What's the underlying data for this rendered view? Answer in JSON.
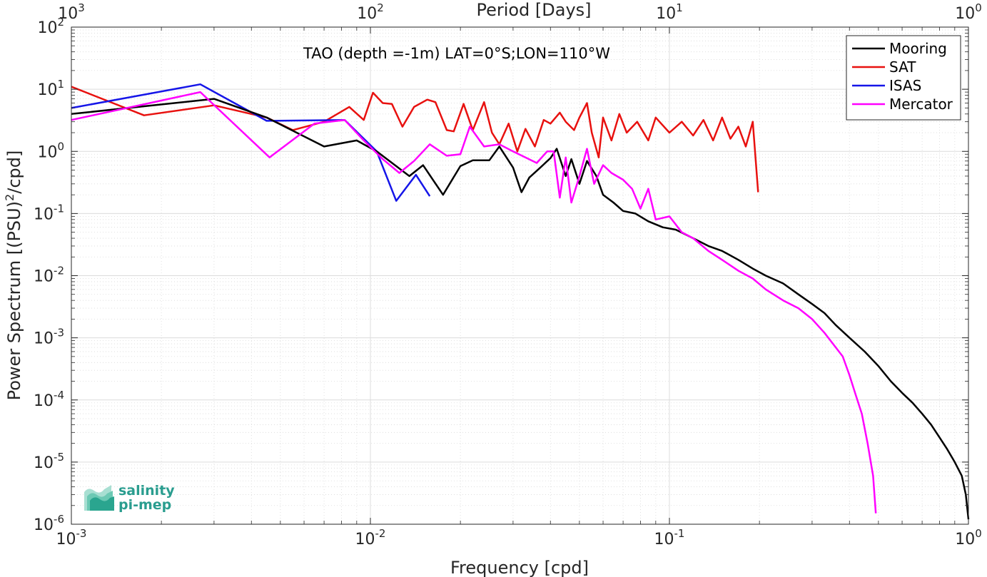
{
  "chart_data": {
    "type": "line",
    "title": "TAO (depth =-1m) LAT=0°S;LON=110°W",
    "xlabel": "Frequency [cpd]",
    "ylabel": "Power Spectrum [(PSU)",
    "ylabel_sup": "2",
    "ylabel_tail": "/cpd]",
    "x2label": "Period [Days]",
    "xscale": "log",
    "yscale": "log",
    "xlim": [
      0.001,
      1
    ],
    "ylim": [
      1e-06,
      100
    ],
    "grid": true,
    "legend_position": "top-right",
    "x_ticks": [
      {
        "value": 0.001,
        "base": "10",
        "exp": "-3"
      },
      {
        "value": 0.01,
        "base": "10",
        "exp": "-2"
      },
      {
        "value": 0.1,
        "base": "10",
        "exp": "-1"
      },
      {
        "value": 1,
        "base": "10",
        "exp": "0"
      }
    ],
    "y_ticks": [
      {
        "value": 1e-06,
        "base": "10",
        "exp": "-6"
      },
      {
        "value": 1e-05,
        "base": "10",
        "exp": "-5"
      },
      {
        "value": 0.0001,
        "base": "10",
        "exp": "-4"
      },
      {
        "value": 0.001,
        "base": "10",
        "exp": "-3"
      },
      {
        "value": 0.01,
        "base": "10",
        "exp": "-2"
      },
      {
        "value": 0.1,
        "base": "10",
        "exp": "-1"
      },
      {
        "value": 1,
        "base": "10",
        "exp": "0"
      },
      {
        "value": 10,
        "base": "10",
        "exp": "1"
      },
      {
        "value": 100,
        "base": "10",
        "exp": "2"
      }
    ],
    "x2_ticks": [
      {
        "period": 1000,
        "base": "10",
        "exp": "3"
      },
      {
        "period": 100,
        "base": "10",
        "exp": "2"
      },
      {
        "period": 10,
        "base": "10",
        "exp": "1"
      },
      {
        "period": 1,
        "base": "10",
        "exp": "0"
      }
    ],
    "series": [
      {
        "name": "Mooring",
        "color": "#000000",
        "points": [
          [
            0.001,
            4.0
          ],
          [
            0.003,
            7.0
          ],
          [
            0.0045,
            3.5
          ],
          [
            0.007,
            1.2
          ],
          [
            0.009,
            1.5
          ],
          [
            0.0105,
            1.0
          ],
          [
            0.0135,
            0.4
          ],
          [
            0.015,
            0.6
          ],
          [
            0.0175,
            0.2
          ],
          [
            0.02,
            0.58
          ],
          [
            0.022,
            0.72
          ],
          [
            0.025,
            0.72
          ],
          [
            0.027,
            1.2
          ],
          [
            0.03,
            0.55
          ],
          [
            0.032,
            0.22
          ],
          [
            0.034,
            0.38
          ],
          [
            0.037,
            0.55
          ],
          [
            0.04,
            0.78
          ],
          [
            0.042,
            1.1
          ],
          [
            0.045,
            0.4
          ],
          [
            0.047,
            0.75
          ],
          [
            0.05,
            0.3
          ],
          [
            0.053,
            0.7
          ],
          [
            0.057,
            0.4
          ],
          [
            0.06,
            0.2
          ],
          [
            0.065,
            0.15
          ],
          [
            0.07,
            0.11
          ],
          [
            0.077,
            0.1
          ],
          [
            0.085,
            0.075
          ],
          [
            0.095,
            0.06
          ],
          [
            0.105,
            0.055
          ],
          [
            0.12,
            0.04
          ],
          [
            0.135,
            0.03
          ],
          [
            0.15,
            0.025
          ],
          [
            0.17,
            0.018
          ],
          [
            0.19,
            0.013
          ],
          [
            0.21,
            0.01
          ],
          [
            0.24,
            0.0075
          ],
          [
            0.27,
            0.005
          ],
          [
            0.3,
            0.0035
          ],
          [
            0.33,
            0.0025
          ],
          [
            0.36,
            0.0016
          ],
          [
            0.4,
            0.001
          ],
          [
            0.45,
            0.0006
          ],
          [
            0.5,
            0.00035
          ],
          [
            0.55,
            0.0002
          ],
          [
            0.6,
            0.00013
          ],
          [
            0.65,
            9e-05
          ],
          [
            0.7,
            6e-05
          ],
          [
            0.75,
            4e-05
          ],
          [
            0.8,
            2.5e-05
          ],
          [
            0.85,
            1.6e-05
          ],
          [
            0.9,
            1e-05
          ],
          [
            0.95,
            6e-06
          ],
          [
            0.98,
            3e-06
          ],
          [
            1.0,
            1.2e-06
          ]
        ]
      },
      {
        "name": "SAT",
        "color": "#e8110f",
        "points": [
          [
            0.001,
            11.0
          ],
          [
            0.00175,
            3.8
          ],
          [
            0.003,
            5.5
          ],
          [
            0.0045,
            3.5
          ],
          [
            0.0055,
            2.2
          ],
          [
            0.007,
            3.0
          ],
          [
            0.0085,
            5.2
          ],
          [
            0.0095,
            3.2
          ],
          [
            0.0102,
            8.8
          ],
          [
            0.011,
            6.0
          ],
          [
            0.0118,
            5.8
          ],
          [
            0.0128,
            2.5
          ],
          [
            0.014,
            5.2
          ],
          [
            0.0155,
            6.8
          ],
          [
            0.0165,
            6.2
          ],
          [
            0.018,
            2.2
          ],
          [
            0.019,
            2.1
          ],
          [
            0.0205,
            5.8
          ],
          [
            0.022,
            2.2
          ],
          [
            0.024,
            6.2
          ],
          [
            0.0255,
            2.0
          ],
          [
            0.027,
            1.3
          ],
          [
            0.029,
            2.8
          ],
          [
            0.031,
            1.0
          ],
          [
            0.033,
            2.3
          ],
          [
            0.0355,
            1.2
          ],
          [
            0.038,
            3.2
          ],
          [
            0.04,
            2.8
          ],
          [
            0.043,
            4.2
          ],
          [
            0.045,
            3.0
          ],
          [
            0.048,
            2.2
          ],
          [
            0.05,
            3.5
          ],
          [
            0.053,
            6.0
          ],
          [
            0.055,
            2.0
          ],
          [
            0.058,
            0.8
          ],
          [
            0.06,
            3.5
          ],
          [
            0.064,
            1.5
          ],
          [
            0.068,
            4.0
          ],
          [
            0.072,
            2.0
          ],
          [
            0.078,
            3.0
          ],
          [
            0.085,
            1.5
          ],
          [
            0.09,
            3.5
          ],
          [
            0.1,
            2.0
          ],
          [
            0.11,
            3.0
          ],
          [
            0.12,
            1.8
          ],
          [
            0.13,
            3.2
          ],
          [
            0.14,
            1.5
          ],
          [
            0.15,
            3.5
          ],
          [
            0.16,
            1.6
          ],
          [
            0.17,
            2.5
          ],
          [
            0.18,
            1.2
          ],
          [
            0.19,
            3.0
          ],
          [
            0.198,
            0.22
          ]
        ]
      },
      {
        "name": "ISAS",
        "color": "#1515e8",
        "points": [
          [
            0.001,
            5.0
          ],
          [
            0.0027,
            12.0
          ],
          [
            0.0045,
            3.1
          ],
          [
            0.0082,
            3.2
          ],
          [
            0.0105,
            1.0
          ],
          [
            0.0122,
            0.16
          ],
          [
            0.0142,
            0.42
          ],
          [
            0.0158,
            0.19
          ]
        ]
      },
      {
        "name": "Mercator",
        "color": "#ff00ff",
        "points": [
          [
            0.001,
            3.2
          ],
          [
            0.0027,
            9.0
          ],
          [
            0.0046,
            0.8
          ],
          [
            0.0065,
            2.8
          ],
          [
            0.0082,
            3.2
          ],
          [
            0.0095,
            1.5
          ],
          [
            0.011,
            0.75
          ],
          [
            0.0125,
            0.45
          ],
          [
            0.014,
            0.7
          ],
          [
            0.0158,
            1.3
          ],
          [
            0.018,
            0.85
          ],
          [
            0.02,
            0.9
          ],
          [
            0.0215,
            2.5
          ],
          [
            0.024,
            1.2
          ],
          [
            0.027,
            1.3
          ],
          [
            0.03,
            1.0
          ],
          [
            0.033,
            0.8
          ],
          [
            0.036,
            0.65
          ],
          [
            0.039,
            1.0
          ],
          [
            0.041,
            1.0
          ],
          [
            0.043,
            0.18
          ],
          [
            0.045,
            0.8
          ],
          [
            0.047,
            0.15
          ],
          [
            0.05,
            0.4
          ],
          [
            0.053,
            1.1
          ],
          [
            0.056,
            0.3
          ],
          [
            0.06,
            0.6
          ],
          [
            0.064,
            0.45
          ],
          [
            0.07,
            0.35
          ],
          [
            0.075,
            0.25
          ],
          [
            0.08,
            0.12
          ],
          [
            0.085,
            0.25
          ],
          [
            0.09,
            0.08
          ],
          [
            0.1,
            0.09
          ],
          [
            0.11,
            0.05
          ],
          [
            0.12,
            0.04
          ],
          [
            0.135,
            0.025
          ],
          [
            0.15,
            0.018
          ],
          [
            0.17,
            0.012
          ],
          [
            0.19,
            0.009
          ],
          [
            0.21,
            0.006
          ],
          [
            0.24,
            0.004
          ],
          [
            0.27,
            0.003
          ],
          [
            0.3,
            0.002
          ],
          [
            0.33,
            0.0012
          ],
          [
            0.36,
            0.0007
          ],
          [
            0.38,
            0.0005
          ],
          [
            0.4,
            0.00025
          ],
          [
            0.42,
            0.00012
          ],
          [
            0.44,
            6e-05
          ],
          [
            0.46,
            2e-05
          ],
          [
            0.48,
            6e-06
          ],
          [
            0.49,
            1.5e-06
          ]
        ]
      }
    ]
  },
  "logo": {
    "line1": "salinity",
    "line2": "pi-mep"
  }
}
